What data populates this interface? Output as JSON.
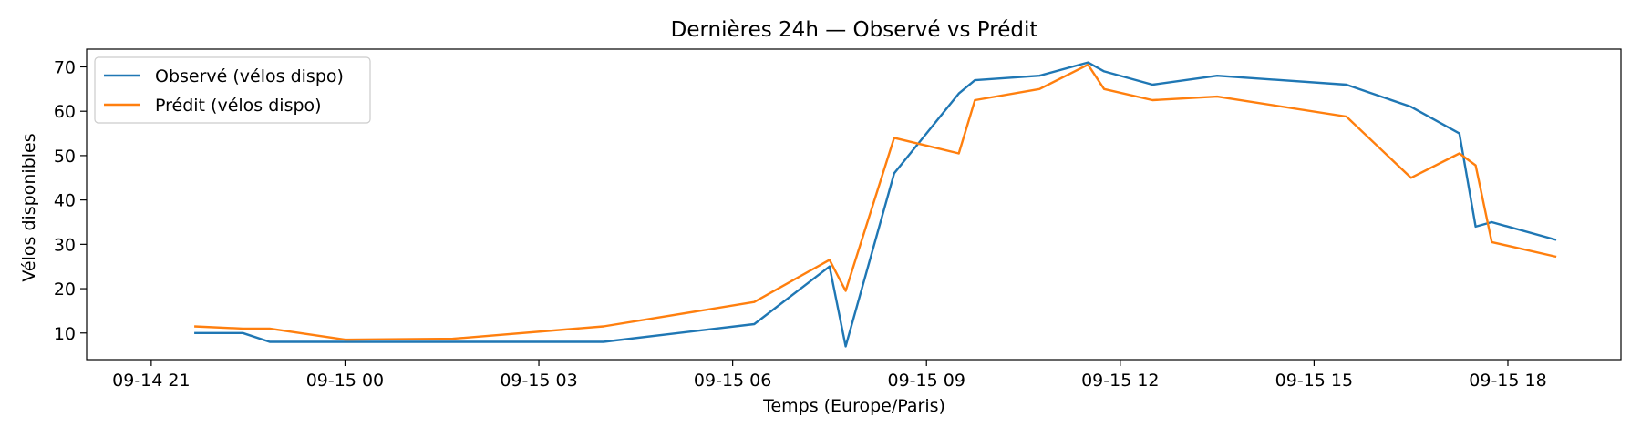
{
  "chart_data": {
    "type": "line",
    "title": "Dernières 24h — Observé vs Prédit",
    "xlabel": "Temps (Europe/Paris)",
    "ylabel": "Vélos disponibles",
    "xlim": [
      "2024-09-14T20:00",
      "2024-09-15T19:45"
    ],
    "ylim": [
      4,
      74
    ],
    "x_ticks": [
      {
        "at": "2024-09-14T21:00",
        "label": "09-14 21"
      },
      {
        "at": "2024-09-15T00:00",
        "label": "09-15 00"
      },
      {
        "at": "2024-09-15T03:00",
        "label": "09-15 03"
      },
      {
        "at": "2024-09-15T06:00",
        "label": "09-15 06"
      },
      {
        "at": "2024-09-15T09:00",
        "label": "09-15 09"
      },
      {
        "at": "2024-09-15T12:00",
        "label": "09-15 12"
      },
      {
        "at": "2024-09-15T15:00",
        "label": "09-15 15"
      },
      {
        "at": "2024-09-15T18:00",
        "label": "09-15 18"
      }
    ],
    "y_ticks": [
      10,
      20,
      30,
      40,
      50,
      60,
      70
    ],
    "grid": false,
    "legend": "upper-left",
    "series": [
      {
        "name": "Observé (vélos dispo)",
        "color": "#1f77b4",
        "points": [
          [
            "2024-09-14T21:40",
            10
          ],
          [
            "2024-09-14T22:25",
            10
          ],
          [
            "2024-09-14T22:50",
            8
          ],
          [
            "2024-09-15T00:00",
            8
          ],
          [
            "2024-09-15T01:40",
            8
          ],
          [
            "2024-09-15T04:00",
            8
          ],
          [
            "2024-09-15T06:20",
            12
          ],
          [
            "2024-09-15T07:30",
            25
          ],
          [
            "2024-09-15T07:45",
            7
          ],
          [
            "2024-09-15T08:30",
            46
          ],
          [
            "2024-09-15T09:30",
            64
          ],
          [
            "2024-09-15T09:45",
            67
          ],
          [
            "2024-09-15T10:45",
            68
          ],
          [
            "2024-09-15T11:30",
            71
          ],
          [
            "2024-09-15T11:45",
            69
          ],
          [
            "2024-09-15T12:30",
            66
          ],
          [
            "2024-09-15T13:30",
            68
          ],
          [
            "2024-09-15T15:30",
            66
          ],
          [
            "2024-09-15T16:30",
            61
          ],
          [
            "2024-09-15T17:15",
            55
          ],
          [
            "2024-09-15T17:30",
            34
          ],
          [
            "2024-09-15T17:45",
            35
          ],
          [
            "2024-09-15T18:45",
            31
          ]
        ]
      },
      {
        "name": "Prédit (vélos dispo)",
        "color": "#ff7f0e",
        "points": [
          [
            "2024-09-14T21:40",
            11.5
          ],
          [
            "2024-09-14T22:25",
            11
          ],
          [
            "2024-09-14T22:50",
            11
          ],
          [
            "2024-09-15T00:00",
            8.5
          ],
          [
            "2024-09-15T01:40",
            8.7
          ],
          [
            "2024-09-15T04:00",
            11.5
          ],
          [
            "2024-09-15T06:20",
            17
          ],
          [
            "2024-09-15T07:30",
            26.5
          ],
          [
            "2024-09-15T07:45",
            19.5
          ],
          [
            "2024-09-15T08:30",
            54
          ],
          [
            "2024-09-15T09:30",
            50.5
          ],
          [
            "2024-09-15T09:45",
            62.5
          ],
          [
            "2024-09-15T10:45",
            65
          ],
          [
            "2024-09-15T11:30",
            70.5
          ],
          [
            "2024-09-15T11:45",
            65
          ],
          [
            "2024-09-15T12:30",
            62.5
          ],
          [
            "2024-09-15T13:30",
            63.3
          ],
          [
            "2024-09-15T15:30",
            58.8
          ],
          [
            "2024-09-15T16:30",
            45
          ],
          [
            "2024-09-15T17:15",
            50.5
          ],
          [
            "2024-09-15T17:30",
            47.8
          ],
          [
            "2024-09-15T17:45",
            30.5
          ],
          [
            "2024-09-15T18:45",
            27.2
          ]
        ]
      }
    ]
  }
}
